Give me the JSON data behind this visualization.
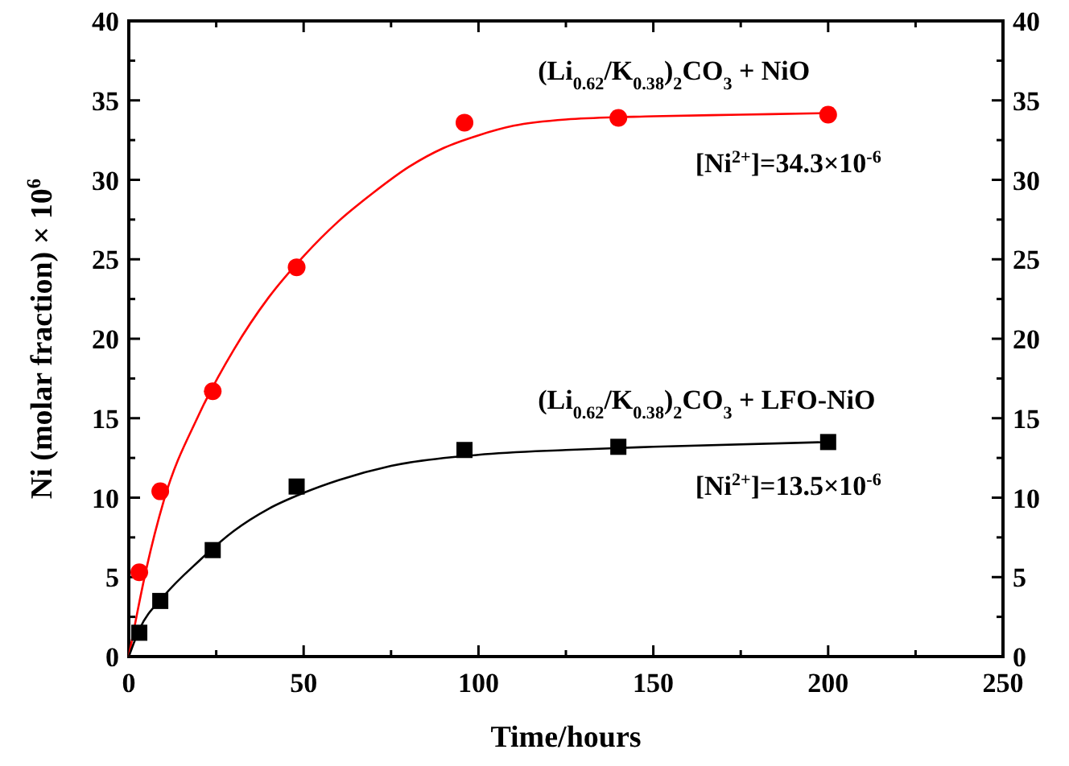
{
  "chart_data": {
    "type": "scatter",
    "xlabel": "Time/hours",
    "ylabel": "Ni (molar fraction) × 10$^{6}$",
    "xlim": [
      0,
      250
    ],
    "xticks": [
      0,
      {
        "value": 25,
        "label": null
      },
      50,
      {
        "value": 75,
        "label": null
      },
      100,
      {
        "value": 125,
        "label": null
      },
      150,
      {
        "value": 175,
        "label": null
      },
      200,
      {
        "value": 225,
        "label": null
      },
      250
    ],
    "ylim": [
      0,
      40
    ],
    "yticks": [
      0,
      {
        "value": 2.5,
        "label": null
      },
      5,
      {
        "value": 7.5,
        "label": null
      },
      10,
      {
        "value": 12.5,
        "label": null
      },
      15,
      {
        "value": 17.5,
        "label": null
      },
      20,
      {
        "value": 22.5,
        "label": null
      },
      25,
      {
        "value": 27.5,
        "label": null
      },
      30,
      {
        "value": 32.5,
        "label": null
      },
      35,
      {
        "value": 37.5,
        "label": null
      },
      40
    ],
    "y2lim": [
      0,
      40
    ],
    "y2ticks": [
      0,
      {
        "value": 2.5,
        "label": null
      },
      5,
      {
        "value": 7.5,
        "label": null
      },
      10,
      {
        "value": 12.5,
        "label": null
      },
      15,
      {
        "value": 17.5,
        "label": null
      },
      20,
      {
        "value": 22.5,
        "label": null
      },
      25,
      {
        "value": 27.5,
        "label": null
      },
      30,
      {
        "value": 32.5,
        "label": null
      },
      35,
      {
        "value": 37.5,
        "label": null
      },
      40
    ],
    "grid": false,
    "series": [
      {
        "type": "line",
        "color": "#ff0000",
        "marker": "none",
        "x": [
          0,
          5,
          10,
          20,
          30,
          40,
          50,
          60,
          70,
          80,
          90,
          100,
          110,
          125,
          150,
          175,
          200
        ],
        "values": [
          0,
          5.5,
          9.8,
          15.2,
          19.3,
          22.6,
          25.2,
          27.4,
          29.2,
          30.8,
          32.0,
          32.8,
          33.4,
          33.8,
          34.0,
          34.1,
          34.2
        ]
      },
      {
        "type": "line",
        "color": "#000000",
        "marker": "none",
        "x": [
          0,
          3,
          10,
          20,
          30,
          40,
          50,
          60,
          75,
          100,
          125,
          150,
          200
        ],
        "values": [
          0,
          1.7,
          3.8,
          6.0,
          7.9,
          9.3,
          10.3,
          11.1,
          12.0,
          12.7,
          13.0,
          13.2,
          13.5
        ]
      },
      {
        "color": "#ff0000",
        "marker": "circle",
        "x": [
          3,
          9,
          24,
          48,
          96,
          140,
          200
        ],
        "values": [
          5.3,
          10.4,
          16.7,
          24.5,
          33.6,
          33.9,
          34.1
        ]
      },
      {
        "color": "#000000",
        "marker": "square",
        "x": [
          3,
          9,
          24,
          48,
          96,
          140,
          200
        ],
        "values": [
          1.5,
          3.5,
          6.7,
          10.7,
          13.0,
          13.2,
          13.5
        ]
      }
    ],
    "annotations": [
      "(Li$_{0.62}$/K$_{0.38}$)$_{2}$CO$_{3}$ + NiO",
      "[Ni$^{2+}$]=34.3×10$^{-6}$",
      "(Li$_{0.62}$/K$_{0.38}$)$_{2}$CO$_{3}$ + LFO-NiO",
      "[Ni$^{2+}$]=13.5×10$^{-6}$"
    ]
  }
}
